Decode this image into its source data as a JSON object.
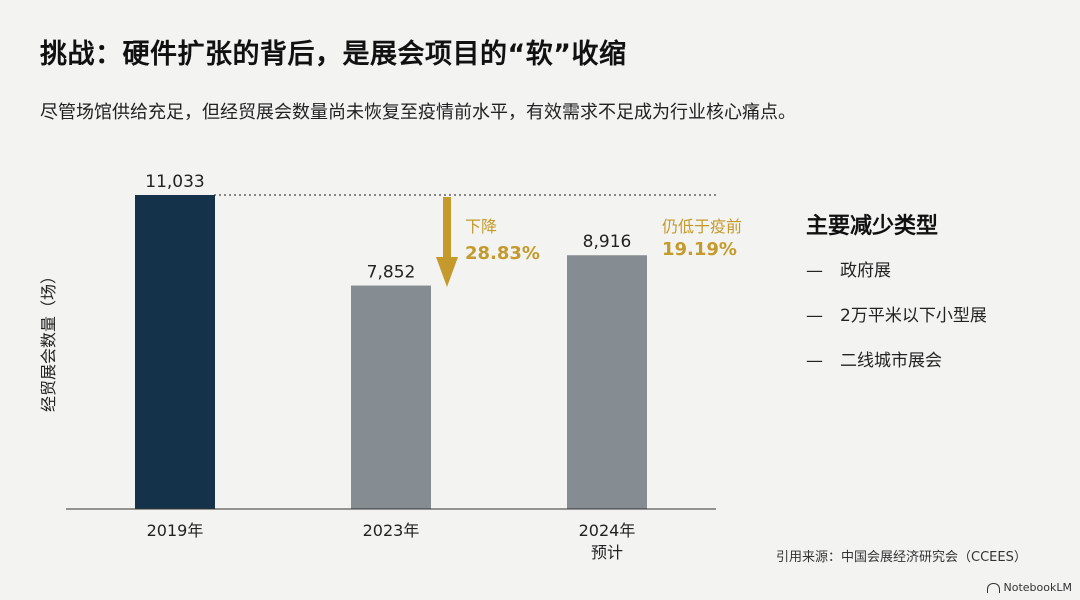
{
  "title": "挑战：硬件扩张的背后，是展会项目的“软”收缩",
  "subtitle": "尽管场馆供给充足，但经贸展会数量尚未恢复至疫情前水平，有效需求不足成为行业核心痛点。",
  "chart_data": {
    "type": "bar",
    "categories": [
      [
        "2019年"
      ],
      [
        "2023年"
      ],
      [
        "2024年",
        "预计"
      ]
    ],
    "values": [
      11033,
      7852,
      8916
    ],
    "value_labels": [
      "11,033",
      "7,852",
      "8,916"
    ],
    "ylabel": "经贸展会数量（场）",
    "ylim": [
      0,
      11500
    ],
    "colors": [
      "#14334a",
      "#858c92",
      "#858c92"
    ],
    "annotations": [
      {
        "label": "下降",
        "value": "28.83%"
      },
      {
        "label": "仍低于疫前",
        "value": "19.19%"
      }
    ],
    "annotation_color": "#c49a2c",
    "reference_line_value": 11033,
    "grid": false
  },
  "side_panel": {
    "title": "主要减少类型",
    "items": [
      "政府展",
      "2万平米以下小型展",
      "二线城市展会"
    ]
  },
  "source": "引用来源：中国会展经济研究会（CCEES）",
  "brand": "NotebookLM"
}
